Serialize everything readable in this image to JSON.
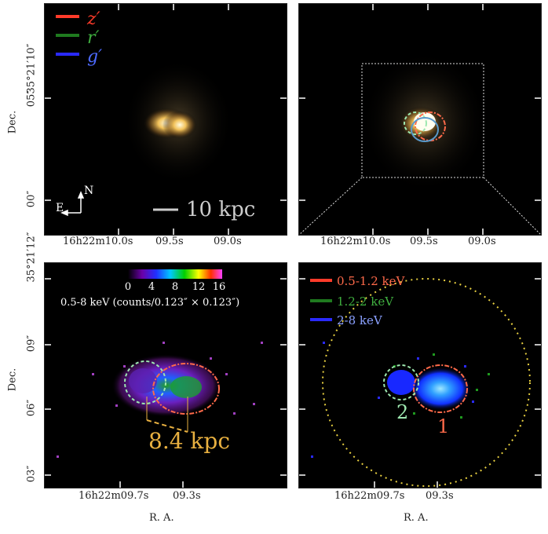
{
  "panels": {
    "top_left": {
      "legend": [
        {
          "text": "z′",
          "color": "#ff3b2a"
        },
        {
          "text": "r′",
          "color": "#1f7a1f"
        },
        {
          "text": "g′",
          "color": "#2a2aff"
        }
      ],
      "compass_n": "N",
      "compass_e": "E",
      "scalebar": "10 kpc",
      "y_ticks": [
        "35°21′10″",
        "05″",
        "00″"
      ],
      "x_ticks": [
        "16h22m10.0s",
        "09.5s",
        "09.0s"
      ],
      "ylabel": "Dec."
    },
    "top_right": {
      "x_ticks": [
        "16h22m10.0s",
        "09.5s",
        "09.0s"
      ]
    },
    "bottom_left": {
      "colorbar_ticks": [
        "0",
        "4",
        "8",
        "12",
        "16"
      ],
      "colorbar_label": "0.5-8 keV (counts/0.123″ × 0.123″)",
      "distance": "8.4 kpc",
      "y_ticks": [
        "35°21′12″",
        "09″",
        "06″",
        "03″"
      ],
      "x_ticks": [
        "16h22m09.7s",
        "09.3s"
      ],
      "ylabel": "Dec.",
      "xlabel": "R. A."
    },
    "bottom_right": {
      "legend": [
        {
          "text": "0.5-1.2 keV",
          "color": "#ff3b2a"
        },
        {
          "text": "1.2-2 keV",
          "color": "#1f7a1f"
        },
        {
          "text": "2-8 keV",
          "color": "#2a2aff"
        }
      ],
      "source_labels": [
        "1",
        "2"
      ],
      "x_ticks": [
        "16h22m09.7s",
        "09.3s"
      ],
      "xlabel": "R. A."
    }
  }
}
